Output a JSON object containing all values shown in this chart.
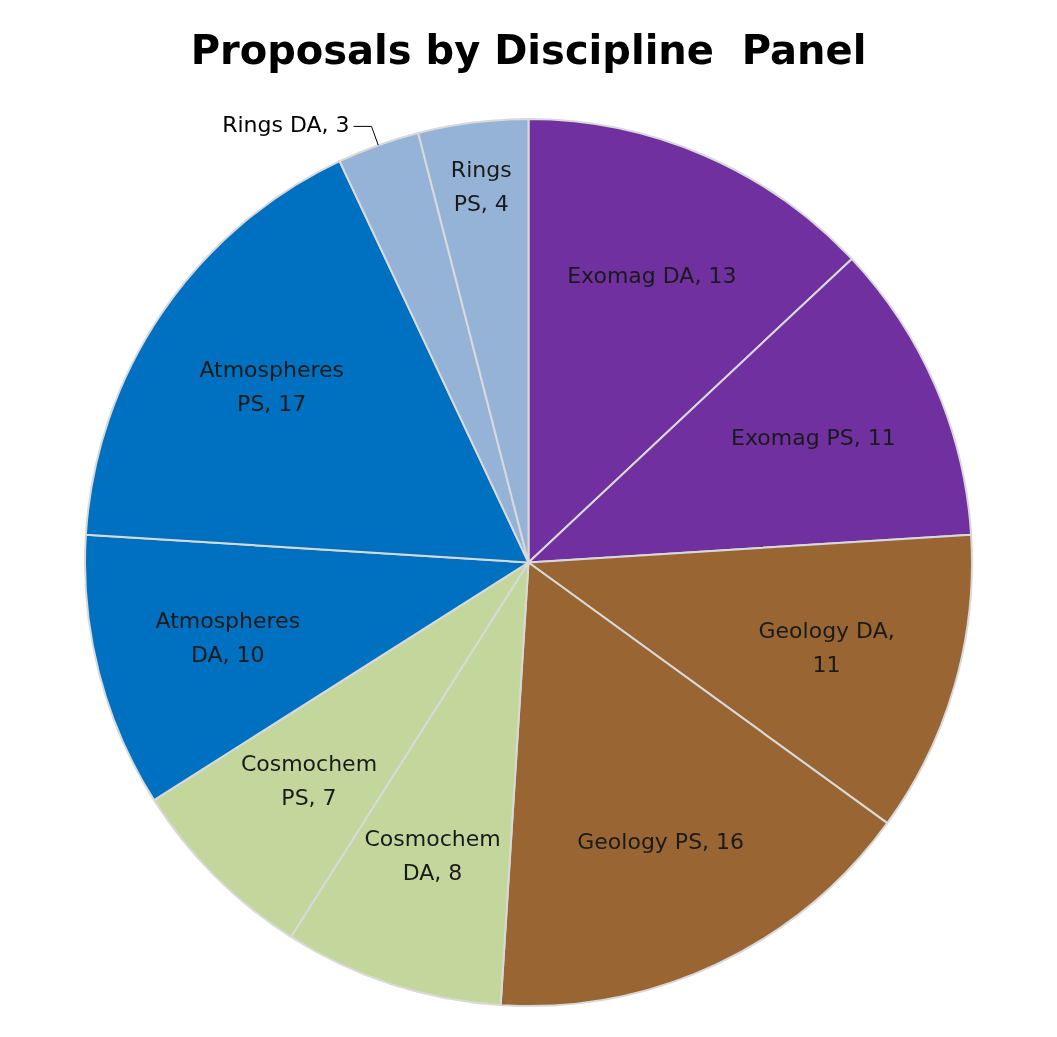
{
  "chart_data": {
    "type": "pie",
    "title": "Proposals by Discipline  Panel",
    "categories": [
      "Exomag DA, 13",
      "Exomag PS, 11",
      "Geology DA, 11",
      "Geology PS, 16",
      "Cosmochem DA, 8",
      "Cosmochem PS, 7",
      "Atmospheres DA, 10",
      "Atmospheres PS, 17",
      "Rings DA, 3",
      "Rings PS, 4"
    ],
    "values": [
      13,
      11,
      11,
      16,
      8,
      7,
      10,
      17,
      3,
      4
    ],
    "colors": [
      "#7030a0",
      "#7030a0",
      "#996633",
      "#996633",
      "#c3d69b",
      "#c3d69b",
      "#0070c0",
      "#0070c0",
      "#95b3d7",
      "#95b3d7"
    ],
    "legend": false
  }
}
